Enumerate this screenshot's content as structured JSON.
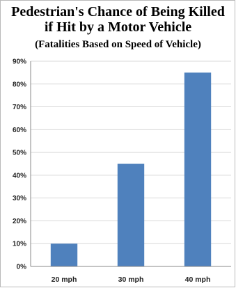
{
  "chart_data": {
    "type": "bar",
    "title_line1": "Pedestrian's Chance of Being Killed",
    "title_line2": "if Hit by a Motor Vehicle",
    "subtitle": "(Fatalities Based on Speed of Vehicle)",
    "categories": [
      "20 mph",
      "30 mph",
      "40 mph"
    ],
    "values": [
      10,
      45,
      85
    ],
    "ylim": [
      0,
      90
    ],
    "yticks": [
      0,
      10,
      20,
      30,
      40,
      50,
      60,
      70,
      80,
      90
    ],
    "ytick_labels": [
      "0%",
      "10%",
      "20%",
      "30%",
      "40%",
      "50%",
      "60%",
      "70%",
      "80%",
      "90%"
    ],
    "grid": true,
    "legend": "none",
    "colors": {
      "bar": "#4f81bd",
      "grid": "#d9d9d9",
      "axis": "#888888"
    }
  }
}
